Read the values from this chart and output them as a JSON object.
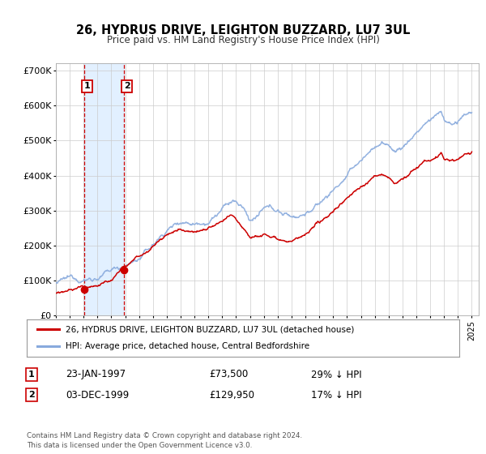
{
  "title": "26, HYDRUS DRIVE, LEIGHTON BUZZARD, LU7 3UL",
  "subtitle": "Price paid vs. HM Land Registry's House Price Index (HPI)",
  "legend_line1": "26, HYDRUS DRIVE, LEIGHTON BUZZARD, LU7 3UL (detached house)",
  "legend_line2": "HPI: Average price, detached house, Central Bedfordshire",
  "transaction1_label": "1",
  "transaction1_date": "23-JAN-1997",
  "transaction1_price": "£73,500",
  "transaction1_hpi": "29% ↓ HPI",
  "transaction2_label": "2",
  "transaction2_date": "03-DEC-1999",
  "transaction2_price": "£129,950",
  "transaction2_hpi": "17% ↓ HPI",
  "footer": "Contains HM Land Registry data © Crown copyright and database right 2024.\nThis data is licensed under the Open Government Licence v3.0.",
  "price_color": "#cc0000",
  "hpi_color": "#88aadd",
  "transaction1_x": 1997.06,
  "transaction1_y": 73500,
  "transaction2_x": 1999.92,
  "transaction2_y": 129950,
  "shade_color": "#ddeeff",
  "vline_color": "#cc0000",
  "xlim": [
    1995.0,
    2025.5
  ],
  "ylim": [
    0,
    720000
  ],
  "yticks": [
    0,
    100000,
    200000,
    300000,
    400000,
    500000,
    600000,
    700000
  ],
  "ytick_labels": [
    "£0",
    "£100K",
    "£200K",
    "£300K",
    "£400K",
    "£500K",
    "£600K",
    "£700K"
  ],
  "background_color": "#ffffff",
  "grid_color": "#cccccc"
}
